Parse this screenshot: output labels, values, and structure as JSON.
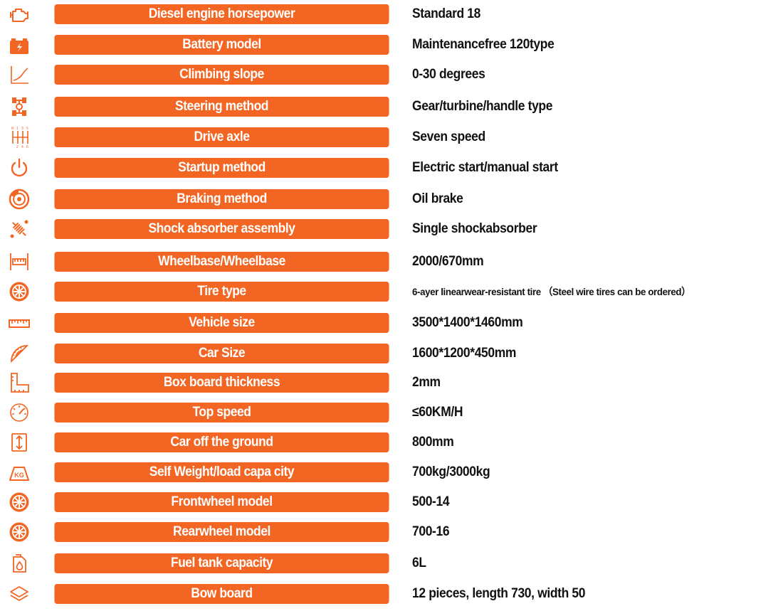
{
  "colors": {
    "accent": "#f26522",
    "label_text": "#ffffff",
    "value_text": "#111111"
  },
  "rows": [
    {
      "icon": "engine-icon",
      "label": "Diesel engine horsepower",
      "value": "Standard 18"
    },
    {
      "icon": "battery-icon",
      "label": "Battery model",
      "value": "Maintenancefree 120type"
    },
    {
      "icon": "slope-chart-icon",
      "label": "Climbing slope",
      "value": "0-30 degrees"
    },
    {
      "icon": "steering-axle-icon",
      "label": "Steering method",
      "value": "Gear/turbine/handle type"
    },
    {
      "icon": "gear-shift-icon",
      "label": "Drive axle",
      "value": "Seven speed"
    },
    {
      "icon": "power-icon",
      "label": "Startup method",
      "value": "Electric start/manual start"
    },
    {
      "icon": "brake-disc-icon",
      "label": "Braking method",
      "value": "Oil brake"
    },
    {
      "icon": "shock-absorber-icon",
      "label": "Shock absorber assembly",
      "value": "Single shockabsorber"
    },
    {
      "icon": "wheelbase-icon",
      "label": "Wheelbase/Wheelbase",
      "value": "2000/670mm"
    },
    {
      "icon": "tire-icon",
      "label": "Tire type",
      "value": "6-ayer linearwear-resistant tire  （Steel wire tires can be ordered）"
    },
    {
      "icon": "ruler-icon",
      "label": "Vehicle size",
      "value": "3500*1400*1460mm"
    },
    {
      "icon": "protractor-icon",
      "label": "Car Size",
      "value": "1600*1200*450mm"
    },
    {
      "icon": "thickness-icon",
      "label": "Box board thickness",
      "value": "2mm"
    },
    {
      "icon": "speedometer-icon",
      "label": "Top speed",
      "value": "≤60KM/H"
    },
    {
      "icon": "height-icon",
      "label": "Car off the ground",
      "value": "800mm"
    },
    {
      "icon": "weight-icon",
      "label": "Self  Weight/load capa city",
      "value": "700kg/3000kg"
    },
    {
      "icon": "tire-icon",
      "label": "Frontwheel model",
      "value": "500-14"
    },
    {
      "icon": "tire-icon",
      "label": "Rearwheel model",
      "value": "700-16"
    },
    {
      "icon": "fuel-tank-icon",
      "label": "Fuel tank capacity",
      "value": "6L"
    },
    {
      "icon": "layers-icon",
      "label": "Bow board",
      "value": "12 pieces, length 730, width 50"
    }
  ]
}
